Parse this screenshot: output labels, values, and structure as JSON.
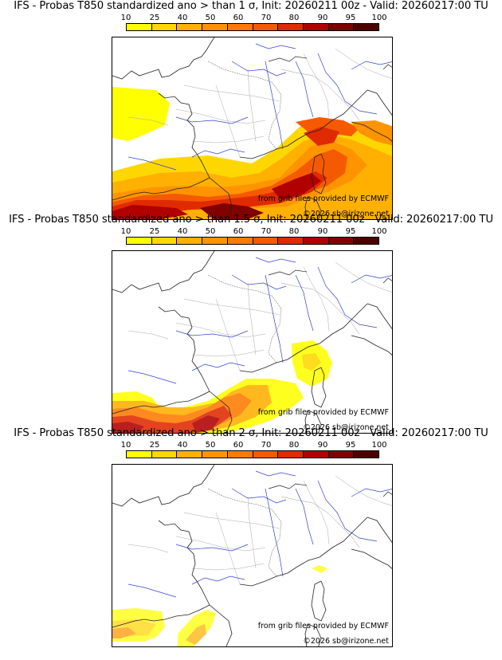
{
  "panels": [
    {
      "title": "IFS - Probas T850  standardized ano > than 1 σ, Init: 20260211 00z - Valid: 20260217:00 TU",
      "sigma": "1",
      "intensity": 1.0
    },
    {
      "title": "IFS - Probas T850  standardized ano > than 1.5 σ, Init: 20260211 00z - Valid: 20260217:00 TU",
      "sigma": "1.5",
      "intensity": 0.72
    },
    {
      "title": "IFS - Probas T850  standardized ano > than 2 σ, Init: 20260211 00z - Valid: 20260217:00 TU",
      "sigma": "2",
      "intensity": 0.4
    }
  ],
  "colorbar": {
    "labels": [
      "10",
      "25",
      "40",
      "50",
      "60",
      "70",
      "80",
      "90",
      "95",
      "100"
    ],
    "colors": [
      "#ffff00",
      "#ffd700",
      "#ffb000",
      "#ff9400",
      "#ff7a00",
      "#f55a00",
      "#e02a00",
      "#b00000",
      "#800000",
      "#4d0000"
    ]
  },
  "credits": {
    "source": "from grib files provided by ECMWF",
    "copyright": "©2026 sb@irizone.net"
  }
}
